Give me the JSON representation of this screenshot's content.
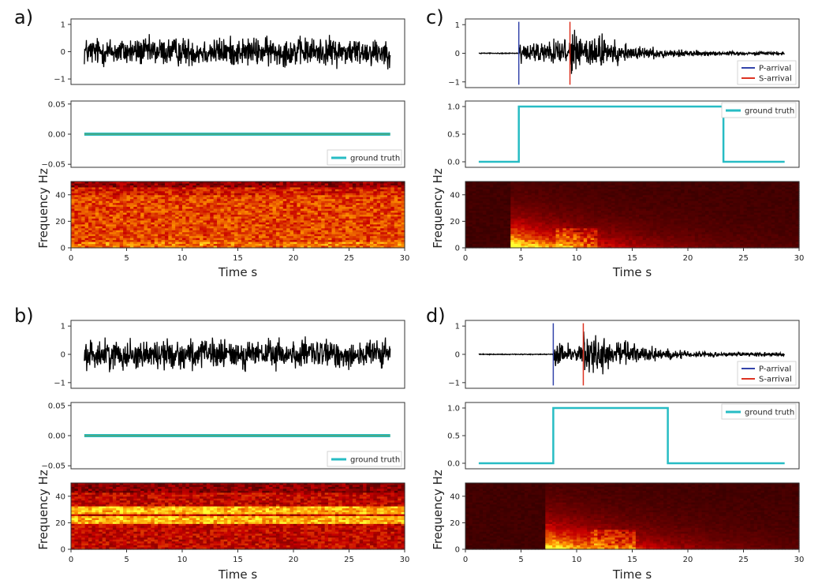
{
  "colors": {
    "trace": "#000000",
    "ground_truth": "#27bcc4",
    "p_arrival": "#3344aa",
    "s_arrival": "#dd3322",
    "frame": "#333333"
  },
  "chart_data": [
    {
      "panel": "a)",
      "type": "line",
      "kind": "noise",
      "waveform": {
        "yticks": [
          "1",
          "0",
          "−1"
        ],
        "ylim": [
          -1.2,
          1.2
        ],
        "x_start": 1.2,
        "x_end": 28.7
      },
      "label_chart": {
        "yticks": [
          "0.05",
          "0.00",
          "−0.05"
        ],
        "ylim": [
          -0.055,
          0.055
        ],
        "series": [
          {
            "name": "ground truth",
            "x": [
              1.2,
              28.7
            ],
            "y": [
              0,
              0
            ]
          }
        ],
        "legend_position": "lower-right"
      },
      "spectrogram": {
        "type": "heatmap",
        "pattern": "broadband",
        "ylabel": "Frequency Hz",
        "yticks": [
          "40",
          "20",
          "0"
        ],
        "ylim": [
          0,
          50
        ],
        "xlabel": "Time s",
        "xticks": [
          "0",
          "5",
          "10",
          "15",
          "20",
          "25",
          "30"
        ],
        "xlim": [
          0,
          30
        ]
      }
    },
    {
      "panel": "b)",
      "type": "line",
      "kind": "noise",
      "waveform": {
        "yticks": [
          "1",
          "0",
          "−1"
        ],
        "ylim": [
          -1.2,
          1.2
        ],
        "x_start": 1.2,
        "x_end": 28.7
      },
      "label_chart": {
        "yticks": [
          "0.05",
          "0.00",
          "−0.05"
        ],
        "ylim": [
          -0.055,
          0.055
        ],
        "series": [
          {
            "name": "ground truth",
            "x": [
              1.2,
              28.7
            ],
            "y": [
              0,
              0
            ]
          }
        ],
        "legend_position": "lower-right"
      },
      "spectrogram": {
        "type": "heatmap",
        "pattern": "banded",
        "bands_hz": [
          22,
          30
        ],
        "ylabel": "Frequency Hz",
        "yticks": [
          "40",
          "20",
          "0"
        ],
        "ylim": [
          0,
          50
        ],
        "xlabel": "Time s",
        "xticks": [
          "0",
          "5",
          "10",
          "15",
          "20",
          "25",
          "30"
        ],
        "xlim": [
          0,
          30
        ]
      }
    },
    {
      "panel": "c)",
      "type": "line",
      "kind": "event",
      "waveform": {
        "yticks": [
          "1",
          "0",
          "−1"
        ],
        "ylim": [
          -1.2,
          1.2
        ],
        "x_start": 1.2,
        "x_end": 28.7,
        "p_arrival": 4.8,
        "s_arrival": 9.4,
        "legend": [
          "P-arrival",
          "S-arrival"
        ],
        "legend_position": "lower-right"
      },
      "label_chart": {
        "yticks": [
          "1.0",
          "0.5",
          "0.0"
        ],
        "ylim": [
          -0.1,
          1.1
        ],
        "series": [
          {
            "name": "ground truth",
            "x": [
              1.2,
              4.8,
              4.8,
              23.2,
              23.2,
              28.7
            ],
            "y": [
              0,
              0,
              1,
              1,
              0,
              0
            ]
          }
        ],
        "legend_position": "upper-right"
      },
      "spectrogram": {
        "type": "heatmap",
        "pattern": "event",
        "onset_s": 4.0,
        "ylabel": "Frequency  Hz",
        "yticks": [
          "40",
          "20",
          "0"
        ],
        "ylim": [
          0,
          50
        ],
        "xlabel": "Time  s",
        "xticks": [
          "0",
          "5",
          "10",
          "15",
          "20",
          "25",
          "30"
        ],
        "xlim": [
          0,
          30
        ]
      }
    },
    {
      "panel": "d)",
      "type": "line",
      "kind": "event",
      "waveform": {
        "yticks": [
          "1",
          "0",
          "−1"
        ],
        "ylim": [
          -1.2,
          1.2
        ],
        "x_start": 1.2,
        "x_end": 28.7,
        "p_arrival": 7.9,
        "s_arrival": 10.6,
        "legend": [
          "P-arrival",
          "S-arrival"
        ],
        "legend_position": "lower-right"
      },
      "label_chart": {
        "yticks": [
          "1.0",
          "0.5",
          "0.0"
        ],
        "ylim": [
          -0.1,
          1.1
        ],
        "series": [
          {
            "name": "ground truth",
            "x": [
              1.2,
              7.9,
              7.9,
              18.2,
              18.2,
              28.7
            ],
            "y": [
              0,
              0,
              1,
              1,
              0,
              0
            ]
          }
        ],
        "legend_position": "upper-right"
      },
      "spectrogram": {
        "type": "heatmap",
        "pattern": "event",
        "onset_s": 7.2,
        "ylabel": "Frequency  Hz",
        "yticks": [
          "40",
          "20",
          "0"
        ],
        "ylim": [
          0,
          50
        ],
        "xlabel": "Time  s",
        "xticks": [
          "0",
          "5",
          "10",
          "15",
          "20",
          "25",
          "30"
        ],
        "xlim": [
          0,
          30
        ]
      }
    }
  ]
}
